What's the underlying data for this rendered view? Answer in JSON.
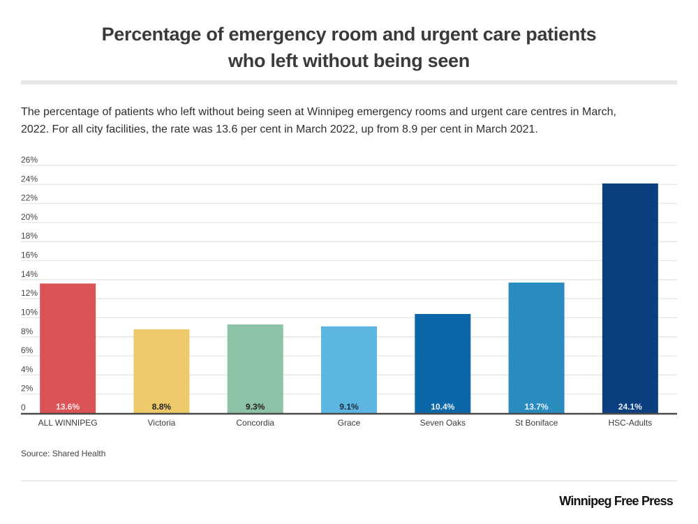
{
  "header": {
    "title_line1": "Percentage of emergency room and urgent care patients",
    "title_line2": "who left without being seen",
    "subtitle_line1": "The percentage of patients who left without being seen at Winnipeg emergency rooms and urgent care centres in March,",
    "subtitle_line2": "2022.  For all city facilities, the rate was 13.6 per cent in March 2022, up from 8.9 per cent in March 2021."
  },
  "footer": {
    "source": "Source: Shared Health",
    "brand": "Winnipeg Free Press"
  },
  "chart_data": {
    "type": "bar",
    "title": "Percentage of emergency room and urgent care patients who left without being seen",
    "xlabel": "",
    "ylabel": "",
    "ylim": [
      0,
      26
    ],
    "grid": true,
    "legend": "none",
    "yticks": [
      0,
      2,
      4,
      6,
      8,
      10,
      12,
      14,
      16,
      18,
      20,
      22,
      24,
      26
    ],
    "ytick_labels": [
      "0",
      "2%",
      "4%",
      "6%",
      "8%",
      "10%",
      "12%",
      "14%",
      "16%",
      "18%",
      "20%",
      "22%",
      "24%",
      "26%"
    ],
    "categories": [
      "ALL WINNIPEG",
      "Victoria",
      "Concordia",
      "Grace",
      "Seven Oaks",
      "St Boniface",
      "HSC-Adults"
    ],
    "values": [
      13.6,
      8.8,
      9.3,
      9.1,
      10.4,
      13.7,
      24.1
    ],
    "data_labels": [
      "13.6%",
      "8.8%",
      "9.3%",
      "9.1%",
      "10.4%",
      "13.7%",
      "24.1%"
    ],
    "colors": [
      "#dc5356",
      "#eeca6a",
      "#8cc2a5",
      "#5db6e2",
      "#0b67a8",
      "#2a8bbf",
      "#0b3f7f"
    ],
    "label_colors": [
      "#fce8e8",
      "#222222",
      "#222222",
      "#1a2a3a",
      "#e8f2fa",
      "#e8f2fa",
      "#e8f2fa"
    ]
  }
}
